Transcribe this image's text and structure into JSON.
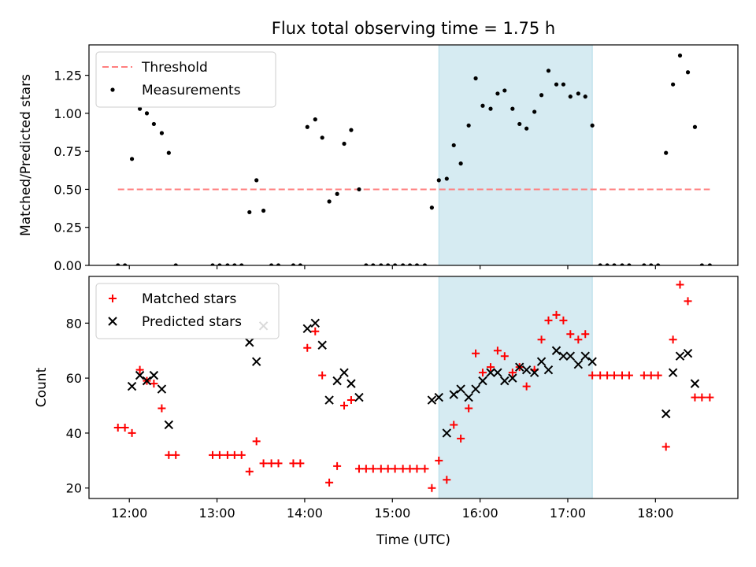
{
  "colors": {
    "threshold": "#ff7f7f",
    "measurement": "#000000",
    "matched": "#ff0000",
    "predicted": "#000000",
    "span": "#add8e6"
  },
  "chart_data": [
    {
      "type": "scatter",
      "title": "Flux total observing time = 1.75 h",
      "ylabel": "Matched/Predicted stars",
      "xlim": [
        11.54,
        18.94
      ],
      "ylim": [
        0.0,
        1.45
      ],
      "xticks": [
        12,
        13,
        14,
        15,
        16,
        17,
        18
      ],
      "xtick_labels": [
        "",
        "",
        "",
        "",
        "",
        "",
        ""
      ],
      "yticks": [
        0.0,
        0.25,
        0.5,
        0.75,
        1.0,
        1.25
      ],
      "ytick_labels": [
        "0.00",
        "0.25",
        "0.50",
        "0.75",
        "1.00",
        "1.25"
      ],
      "legend": "top-left",
      "highlight_span": [
        15.53,
        17.28
      ],
      "threshold": {
        "name": "Threshold",
        "value": 0.5,
        "x": [
          11.87,
          18.62
        ],
        "style": "dashed"
      },
      "series": [
        {
          "name": "Measurements",
          "marker": "dot",
          "x": [
            11.87,
            11.95,
            12.03,
            12.12,
            12.2,
            12.28,
            12.37,
            12.45,
            12.53,
            12.95,
            13.03,
            13.12,
            13.2,
            13.28,
            13.37,
            13.45,
            13.53,
            13.62,
            13.7,
            13.87,
            13.95,
            14.03,
            14.12,
            14.2,
            14.28,
            14.37,
            14.45,
            14.53,
            14.62,
            14.7,
            14.78,
            14.87,
            14.95,
            15.03,
            15.12,
            15.2,
            15.28,
            15.37,
            15.45,
            15.53,
            15.62,
            15.7,
            15.78,
            15.87,
            15.95,
            16.03,
            16.12,
            16.2,
            16.28,
            16.37,
            16.45,
            16.53,
            16.62,
            16.7,
            16.78,
            16.87,
            16.95,
            17.03,
            17.12,
            17.2,
            17.28,
            17.37,
            17.45,
            17.53,
            17.62,
            17.7,
            17.87,
            17.95,
            18.03,
            18.12,
            18.2,
            18.28,
            18.37,
            18.45,
            18.53,
            18.62
          ],
          "y": [
            0.0,
            0.0,
            0.7,
            1.03,
            1.0,
            0.93,
            0.87,
            0.74,
            0.0,
            0.0,
            0.0,
            0.0,
            0.0,
            0.0,
            0.35,
            0.56,
            0.36,
            0.0,
            0.0,
            0.0,
            0.0,
            0.91,
            0.96,
            0.84,
            0.42,
            0.47,
            0.8,
            0.89,
            0.5,
            0.0,
            0.0,
            0.0,
            0.0,
            0.0,
            0.0,
            0.0,
            0.0,
            0.0,
            0.38,
            0.56,
            0.57,
            0.79,
            0.67,
            0.92,
            1.23,
            1.05,
            1.03,
            1.13,
            1.15,
            1.03,
            0.93,
            0.9,
            1.01,
            1.12,
            1.28,
            1.19,
            1.19,
            1.11,
            1.13,
            1.11,
            0.92,
            0.0,
            0.0,
            0.0,
            0.0,
            0.0,
            0.0,
            0.0,
            0.0,
            0.74,
            1.19,
            1.38,
            1.27,
            0.91,
            0.0,
            0.0
          ]
        }
      ]
    },
    {
      "type": "scatter",
      "xlabel": "Time (UTC)",
      "ylabel": "Count",
      "xlim": [
        11.54,
        18.94
      ],
      "ylim": [
        16.2,
        97.0
      ],
      "xticks": [
        12,
        13,
        14,
        15,
        16,
        17,
        18
      ],
      "xtick_labels": [
        "12:00",
        "13:00",
        "14:00",
        "15:00",
        "16:00",
        "17:00",
        "18:00"
      ],
      "yticks": [
        20,
        40,
        60,
        80
      ],
      "ytick_labels": [
        "20",
        "40",
        "60",
        "80"
      ],
      "legend": "top-left",
      "highlight_span": [
        15.53,
        17.28
      ],
      "series": [
        {
          "name": "Matched stars",
          "marker": "plus",
          "x": [
            11.87,
            11.95,
            12.03,
            12.12,
            12.2,
            12.28,
            12.37,
            12.45,
            12.53,
            12.95,
            13.03,
            13.12,
            13.2,
            13.28,
            13.37,
            13.45,
            13.53,
            13.62,
            13.7,
            13.87,
            13.95,
            14.03,
            14.12,
            14.2,
            14.28,
            14.37,
            14.45,
            14.53,
            14.62,
            14.7,
            14.78,
            14.87,
            14.95,
            15.03,
            15.12,
            15.2,
            15.28,
            15.37,
            15.45,
            15.53,
            15.62,
            15.7,
            15.78,
            15.87,
            15.95,
            16.03,
            16.12,
            16.2,
            16.28,
            16.37,
            16.45,
            16.53,
            16.62,
            16.7,
            16.78,
            16.87,
            16.95,
            17.03,
            17.12,
            17.2,
            17.28,
            17.37,
            17.45,
            17.53,
            17.62,
            17.7,
            17.87,
            17.95,
            18.03,
            18.12,
            18.2,
            18.28,
            18.37,
            18.45,
            18.53,
            18.62
          ],
          "y": [
            42,
            42,
            40,
            63,
            59,
            58,
            49,
            32,
            32,
            32,
            32,
            32,
            32,
            32,
            26,
            37,
            29,
            29,
            29,
            29,
            29,
            71,
            77,
            61,
            22,
            28,
            50,
            52,
            27,
            27,
            27,
            27,
            27,
            27,
            27,
            27,
            27,
            27,
            20,
            30,
            23,
            43,
            38,
            49,
            69,
            62,
            64,
            70,
            68,
            62,
            64,
            57,
            63,
            74,
            81,
            83,
            81,
            76,
            74,
            76,
            61,
            61,
            61,
            61,
            61,
            61,
            61,
            61,
            61,
            35,
            74,
            94,
            88,
            53,
            53,
            53
          ]
        },
        {
          "name": "Predicted stars",
          "marker": "x",
          "x": [
            12.03,
            12.12,
            12.2,
            12.28,
            12.37,
            12.45,
            13.37,
            13.45,
            13.53,
            14.03,
            14.12,
            14.2,
            14.28,
            14.37,
            14.45,
            14.53,
            14.62,
            15.45,
            15.53,
            15.62,
            15.7,
            15.78,
            15.87,
            15.95,
            16.03,
            16.12,
            16.2,
            16.28,
            16.37,
            16.45,
            16.53,
            16.62,
            16.7,
            16.78,
            16.87,
            16.95,
            17.03,
            17.12,
            17.2,
            17.28,
            18.12,
            18.2,
            18.28,
            18.37,
            18.45
          ],
          "y": [
            57,
            61,
            59,
            61,
            56,
            43,
            73,
            66,
            79,
            78,
            80,
            72,
            52,
            59,
            62,
            58,
            53,
            52,
            53,
            40,
            54,
            56,
            53,
            56,
            59,
            62,
            62,
            59,
            60,
            64,
            63,
            62,
            66,
            63,
            70,
            68,
            68,
            65,
            68,
            66,
            47,
            62,
            68,
            69,
            58
          ]
        }
      ]
    }
  ]
}
